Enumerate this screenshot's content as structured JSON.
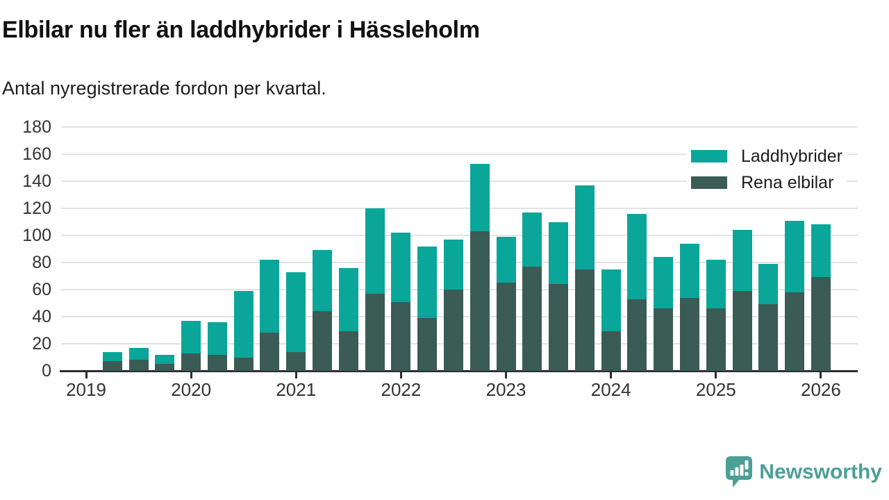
{
  "title": "Elbilar nu fler än laddhybrider i Hässleholm",
  "subtitle": "Antal nyregistrerade fordon per kvartal.",
  "legend": [
    {
      "label": "Laddhybrider",
      "color": "#0AA69A"
    },
    {
      "label": "Rena elbilar",
      "color": "#3B5B55"
    }
  ],
  "branding": {
    "name": "Newsworthy",
    "color": "#4C9F96"
  },
  "colors": {
    "laddhybrider": "#0AA69A",
    "rena_elbilar": "#3B5B55",
    "gridline": "#e3e3e3",
    "axis": "#2d2d2d",
    "text": "#333333",
    "title_text": "#111111"
  },
  "chart_data": {
    "type": "bar",
    "stacked": true,
    "title": "Elbilar nu fler än laddhybrider i Hässleholm",
    "subtitle": "Antal nyregistrerade fordon per kvartal.",
    "xlabel": "",
    "ylabel": "Antal nyregistrerade fordon per kvartal",
    "x": [
      "2019-Q2",
      "2019-Q3",
      "2019-Q4",
      "2020-Q1",
      "2020-Q2",
      "2020-Q3",
      "2020-Q4",
      "2021-Q1",
      "2021-Q2",
      "2021-Q3",
      "2021-Q4",
      "2022-Q1",
      "2022-Q2",
      "2022-Q3",
      "2022-Q4",
      "2023-Q1",
      "2023-Q2",
      "2023-Q3",
      "2023-Q4",
      "2024-Q1",
      "2024-Q2",
      "2024-Q3",
      "2024-Q4",
      "2025-Q1",
      "2025-Q2",
      "2025-Q3",
      "2025-Q4",
      "2026-Q1"
    ],
    "series": [
      {
        "name": "Rena elbilar",
        "color": "#3B5B55",
        "values": [
          7,
          8,
          5,
          13,
          12,
          10,
          28,
          14,
          44,
          29,
          57,
          51,
          39,
          60,
          103,
          65,
          77,
          64,
          75,
          29,
          53,
          46,
          54,
          46,
          59,
          49,
          58,
          69
        ]
      },
      {
        "name": "Laddhybrider",
        "color": "#0AA69A",
        "values": [
          7,
          9,
          7,
          24,
          24,
          49,
          54,
          59,
          45,
          47,
          63,
          51,
          53,
          37,
          50,
          34,
          40,
          46,
          62,
          46,
          63,
          38,
          40,
          36,
          45,
          30,
          53,
          39
        ]
      }
    ],
    "totals": [
      14,
      17,
      12,
      37,
      36,
      59,
      82,
      73,
      89,
      76,
      120,
      102,
      92,
      97,
      153,
      99,
      117,
      110,
      137,
      75,
      116,
      84,
      94,
      82,
      104,
      79,
      111,
      108
    ],
    "ylim": [
      0,
      180
    ],
    "yticks": [
      0,
      20,
      40,
      60,
      80,
      100,
      120,
      140,
      160,
      180
    ],
    "xticks": [
      "2019",
      "2020",
      "2021",
      "2022",
      "2023",
      "2024",
      "2025",
      "2026"
    ],
    "grid": "horizontal",
    "legend_position": "top-right"
  }
}
